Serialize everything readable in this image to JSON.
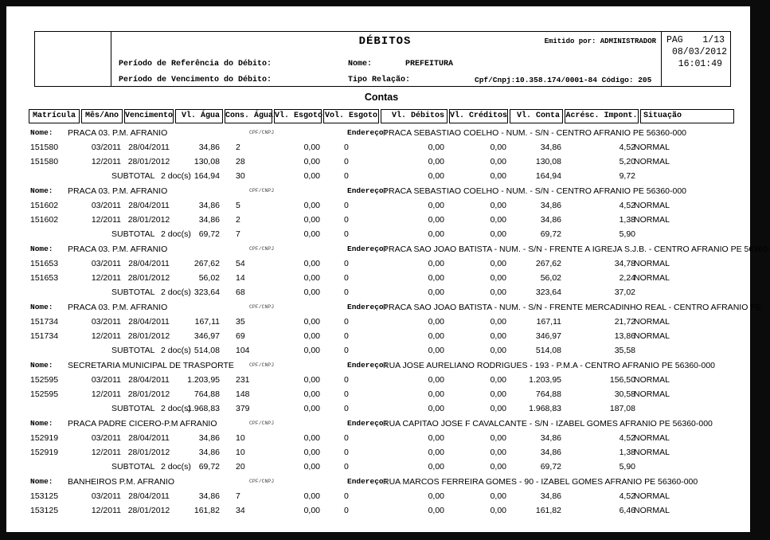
{
  "report": {
    "title": "DÉBITOS",
    "emitted_by_label": "Emitido por:",
    "emitted_by": "ADMINISTRADOR",
    "pag_label": "PAG",
    "page_number": "1/13",
    "date": "08/03/2012",
    "time": "16:01:49",
    "ref_period_label": "Período de Referência do Débito:",
    "due_period_label": "Período de Vencimento do Débito:",
    "nome_label": "Nome:",
    "nome_value": "PREFEITURA",
    "tipo_relacao_label": "Tipo Relação:",
    "cpf_cnpj": "Cpf/Cnpj:10.358.174/0001-84 Código: 205",
    "section_title": "Contas"
  },
  "table": {
    "headers": [
      "Matrícula",
      "Mês/Ano",
      "Vencimento",
      "Vl. Água",
      "Cons. Água",
      "Vl. Esgoto",
      "Vol. Esgoto",
      "Vl. Débitos",
      "Vl. Créditos",
      "Vl. Conta",
      "Acrésc. Impont.",
      "Situação"
    ],
    "group_labels": {
      "nome": "Nome:",
      "cpf_cnpj": "CPF/CNPJ",
      "endereco": "Endereço:",
      "subtotal": "SUBTOTAL"
    },
    "groups": [
      {
        "nome": "PRACA 03.  P.M. AFRANIO",
        "endereco": "PRACA SEBASTIAO COELHO - NUM. - S/N - CENTRO AFRANIO PE 56360-000",
        "rows": [
          [
            "151580",
            "03/2011",
            "28/04/2011",
            "34,86",
            "2",
            "0,00",
            "0",
            "0,00",
            "0,00",
            "34,86",
            "4,52",
            "NORMAL"
          ],
          [
            "151580",
            "12/2011",
            "28/01/2012",
            "130,08",
            "28",
            "0,00",
            "0",
            "0,00",
            "0,00",
            "130,08",
            "5,20",
            "NORMAL"
          ]
        ],
        "subtotal": {
          "docs": "2 doc(s)",
          "values": [
            "164,94",
            "30",
            "0,00",
            "0",
            "0,00",
            "0,00",
            "164,94",
            "9,72"
          ]
        }
      },
      {
        "nome": "PRACA 03.  P.M. AFRANIO",
        "endereco": "PRACA SEBASTIAO COELHO - NUM. - S/N - CENTRO AFRANIO PE 56360-000",
        "rows": [
          [
            "151602",
            "03/2011",
            "28/04/2011",
            "34,86",
            "5",
            "0,00",
            "0",
            "0,00",
            "0,00",
            "34,86",
            "4,52",
            "NORMAL"
          ],
          [
            "151602",
            "12/2011",
            "28/01/2012",
            "34,86",
            "2",
            "0,00",
            "0",
            "0,00",
            "0,00",
            "34,86",
            "1,38",
            "NORMAL"
          ]
        ],
        "subtotal": {
          "docs": "2 doc(s)",
          "values": [
            "69,72",
            "7",
            "0,00",
            "0",
            "0,00",
            "0,00",
            "69,72",
            "5,90"
          ]
        }
      },
      {
        "nome": "PRACA 03.  P.M. AFRANIO",
        "endereco": "PRACA SAO JOAO BATISTA - NUM. - S/N - FRENTE A IGREJA S.J.B. - CENTRO AFRANIO PE 56360-",
        "rows": [
          [
            "151653",
            "03/2011",
            "28/04/2011",
            "267,62",
            "54",
            "0,00",
            "0",
            "0,00",
            "0,00",
            "267,62",
            "34,78",
            "NORMAL"
          ],
          [
            "151653",
            "12/2011",
            "28/01/2012",
            "56,02",
            "14",
            "0,00",
            "0",
            "0,00",
            "0,00",
            "56,02",
            "2,24",
            "NORMAL"
          ]
        ],
        "subtotal": {
          "docs": "2 doc(s)",
          "values": [
            "323,64",
            "68",
            "0,00",
            "0",
            "0,00",
            "0,00",
            "323,64",
            "37,02"
          ]
        }
      },
      {
        "nome": "PRACA 03.  P.M. AFRANIO",
        "endereco": "PRACA SAO JOAO BATISTA - NUM. - S/N - FRENTE MERCADINHO REAL - CENTRO AFRANIO PE",
        "rows": [
          [
            "151734",
            "03/2011",
            "28/04/2011",
            "167,11",
            "35",
            "0,00",
            "0",
            "0,00",
            "0,00",
            "167,11",
            "21,72",
            "NORMAL"
          ],
          [
            "151734",
            "12/2011",
            "28/01/2012",
            "346,97",
            "69",
            "0,00",
            "0",
            "0,00",
            "0,00",
            "346,97",
            "13,86",
            "NORMAL"
          ]
        ],
        "subtotal": {
          "docs": "2 doc(s)",
          "values": [
            "514,08",
            "104",
            "0,00",
            "0",
            "0,00",
            "0,00",
            "514,08",
            "35,58"
          ]
        }
      },
      {
        "nome": "SECRETARIA MUNICIPAL DE TRASPORTE",
        "endereco": "RUA JOSE AURELIANO RODRIGUES - 193 - P.M.A - CENTRO AFRANIO PE 56360-000",
        "rows": [
          [
            "152595",
            "03/2011",
            "28/04/2011",
            "1.203,95",
            "231",
            "0,00",
            "0",
            "0,00",
            "0,00",
            "1.203,95",
            "156,50",
            "NORMAL"
          ],
          [
            "152595",
            "12/2011",
            "28/01/2012",
            "764,88",
            "148",
            "0,00",
            "0",
            "0,00",
            "0,00",
            "764,88",
            "30,58",
            "NORMAL"
          ]
        ],
        "subtotal": {
          "docs": "2 doc(s)",
          "values": [
            "1.968,83",
            "379",
            "0,00",
            "0",
            "0,00",
            "0,00",
            "1.968,83",
            "187,08"
          ]
        }
      },
      {
        "nome": "PRACA PADRE CICERO-P.M AFRANIO",
        "endereco": "RUA CAPITAO JOSE F CAVALCANTE - S/N - IZABEL GOMES AFRANIO PE 56360-000",
        "rows": [
          [
            "152919",
            "03/2011",
            "28/04/2011",
            "34,86",
            "10",
            "0,00",
            "0",
            "0,00",
            "0,00",
            "34,86",
            "4,52",
            "NORMAL"
          ],
          [
            "152919",
            "12/2011",
            "28/01/2012",
            "34,86",
            "10",
            "0,00",
            "0",
            "0,00",
            "0,00",
            "34,86",
            "1,38",
            "NORMAL"
          ]
        ],
        "subtotal": {
          "docs": "2 doc(s)",
          "values": [
            "69,72",
            "20",
            "0,00",
            "0",
            "0,00",
            "0,00",
            "69,72",
            "5,90"
          ]
        }
      },
      {
        "nome": "BANHEIROS P.M. AFRANIO",
        "endereco": "RUA MARCOS FERREIRA GOMES - 90 - IZABEL GOMES AFRANIO PE 56360-000",
        "rows": [
          [
            "153125",
            "03/2011",
            "28/04/2011",
            "34,86",
            "7",
            "0,00",
            "0",
            "0,00",
            "0,00",
            "34,86",
            "4,52",
            "NORMAL"
          ],
          [
            "153125",
            "12/2011",
            "28/01/2012",
            "161,82",
            "34",
            "0,00",
            "0",
            "0,00",
            "0,00",
            "161,82",
            "6,46",
            "NORMAL"
          ]
        ],
        "subtotal": null
      }
    ]
  }
}
